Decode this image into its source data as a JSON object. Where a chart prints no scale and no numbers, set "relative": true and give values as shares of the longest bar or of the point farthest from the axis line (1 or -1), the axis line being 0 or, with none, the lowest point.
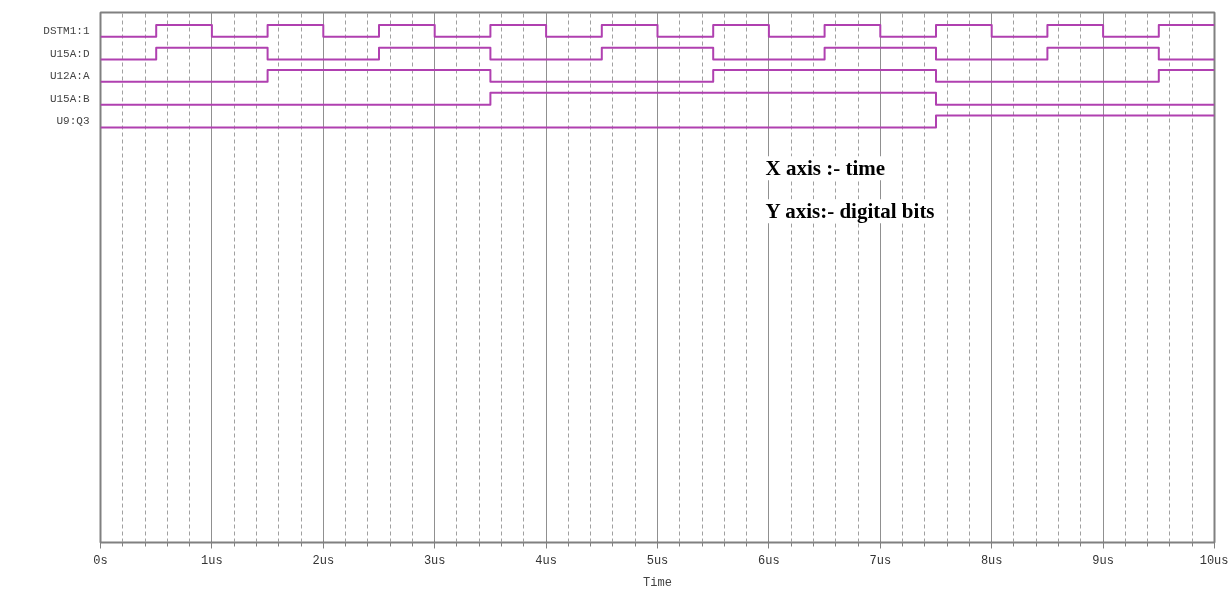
{
  "chart_data": {
    "type": "step",
    "relative": true,
    "xlabel": "Time",
    "xlim": [
      0,
      10
    ],
    "xticks": [
      {
        "value": 0,
        "label": "0s"
      },
      {
        "value": 1,
        "label": "1us"
      },
      {
        "value": 2,
        "label": "2us"
      },
      {
        "value": 3,
        "label": "3us"
      },
      {
        "value": 4,
        "label": "4us"
      },
      {
        "value": 5,
        "label": "5us"
      },
      {
        "value": 6,
        "label": "6us"
      },
      {
        "value": 7,
        "label": "7us"
      },
      {
        "value": 8,
        "label": "8us"
      },
      {
        "value": 9,
        "label": "9us"
      },
      {
        "value": 10,
        "label": "10us"
      }
    ],
    "grid": "x",
    "marker": "none",
    "line_style": "solid",
    "series": [
      {
        "name": "DSTM1:1",
        "color": "#b040b0",
        "x": [
          0,
          0.5,
          1,
          1.5,
          2,
          2.5,
          3,
          3.5,
          4,
          4.5,
          5,
          5.5,
          6,
          6.5,
          7,
          7.5,
          8,
          8.5,
          9,
          9.5,
          10
        ],
        "values": [
          0.977,
          1,
          0.977,
          1,
          0.977,
          1,
          0.977,
          1,
          0.977,
          1,
          0.977,
          1,
          0.977,
          1,
          0.977,
          1,
          0.977,
          1,
          0.977,
          1,
          1
        ]
      },
      {
        "name": "U15A:D",
        "color": "#b040b0",
        "x": [
          0,
          0.5,
          1.5,
          2.5,
          3.5,
          4.5,
          5.5,
          6.5,
          7.5,
          8.5,
          9.5,
          10
        ],
        "values": [
          0.933,
          0.956,
          0.933,
          0.956,
          0.933,
          0.956,
          0.933,
          0.956,
          0.933,
          0.956,
          0.933,
          0.933
        ]
      },
      {
        "name": "U12A:A",
        "color": "#b040b0",
        "x": [
          0,
          1.5,
          3.5,
          5.5,
          7.5,
          9.5,
          10
        ],
        "values": [
          0.89,
          0.913,
          0.89,
          0.913,
          0.89,
          0.913,
          0.913
        ]
      },
      {
        "name": "U15A:B",
        "color": "#b040b0",
        "x": [
          0,
          3.5,
          7.5,
          10
        ],
        "values": [
          0.846,
          0.869,
          0.846,
          0.846
        ]
      },
      {
        "name": "U9:Q3",
        "color": "#b040b0",
        "x": [
          0,
          7.5,
          10
        ],
        "values": [
          0.802,
          0.825,
          0.825
        ]
      }
    ],
    "annotations": [
      "X axis :- time",
      "Y axis:- digital bits"
    ]
  }
}
